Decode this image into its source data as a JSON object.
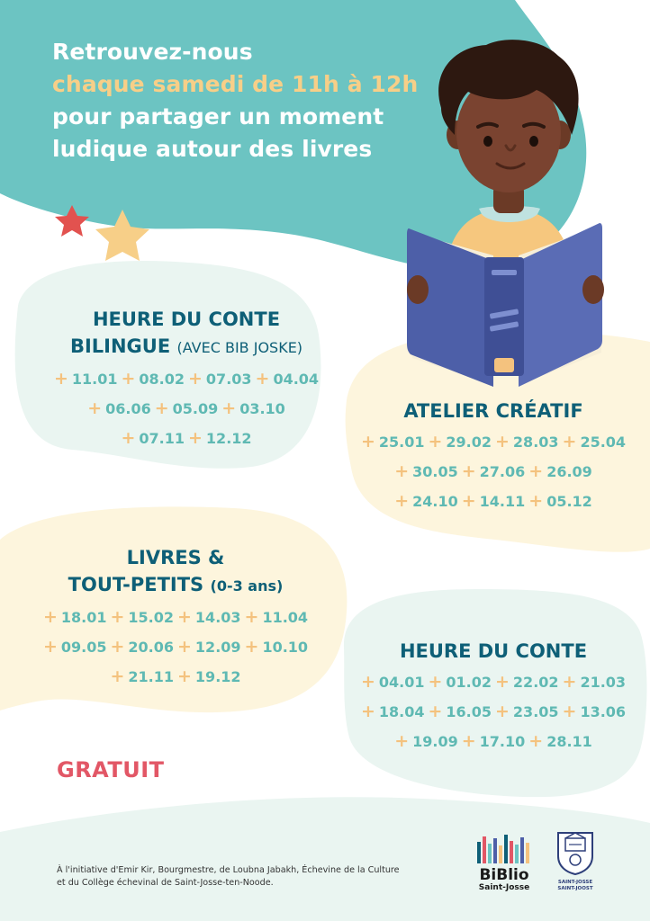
{
  "headline": {
    "line1": "Retrouvez-nous",
    "line2_highlight": "chaque samedi de 11h à 12h",
    "line3": "pour partager un moment",
    "line4": "ludique autour des livres"
  },
  "sections": {
    "conte_bilingue": {
      "title_line1": "HEURE DU CONTE",
      "title_line2": "BILINGUE",
      "title_note": "(AVEC BIB JOSKE)",
      "rows": [
        [
          "11.01",
          "08.02",
          "07.03",
          "04.04"
        ],
        [
          "06.06",
          "05.09",
          "03.10"
        ],
        [
          "07.11",
          "12.12"
        ]
      ]
    },
    "atelier": {
      "title": "ATELIER CRÉATIF",
      "rows": [
        [
          "25.01",
          "29.02",
          "28.03",
          "25.04"
        ],
        [
          "30.05",
          "27.06",
          "26.09"
        ],
        [
          "24.10",
          "14.11",
          "05.12"
        ]
      ]
    },
    "tout_petits": {
      "title_line1": "LIVRES &",
      "title_line2": "TOUT-PETITS",
      "title_note": "(0-3 ans)",
      "rows": [
        [
          "18.01",
          "15.02",
          "14.03",
          "11.04"
        ],
        [
          "09.05",
          "20.06",
          "12.09",
          "10.10"
        ],
        [
          "21.11",
          "19.12"
        ]
      ]
    },
    "conte": {
      "title": "HEURE DU CONTE",
      "rows": [
        [
          "04.01",
          "01.02",
          "22.02",
          "21.03"
        ],
        [
          "18.04",
          "16.05",
          "23.05",
          "13.06"
        ],
        [
          "19.09",
          "17.10",
          "28.11"
        ]
      ]
    }
  },
  "gratuit": "GRATUIT",
  "footer": {
    "line1": "À l'initiative d'Emir Kir, Bourgmestre, de Loubna Jabakh, Échevine de la Culture",
    "line2": "et du Collège échevinal de Saint-Josse-ten-Noode."
  },
  "logos": {
    "biblio_line1": "BiBlio",
    "biblio_line2": "Saint-Josse",
    "commune_line1": "SAINT-JOSSE",
    "commune_line2": "SAINT-JOOST"
  },
  "colors": {
    "teal": "#6cc4c2",
    "mint_blob": "#eaf5f1",
    "cream_blob": "#fdf5dd",
    "title": "#0e5f77",
    "date_text": "#5fb9b3",
    "plus": "#f4c27e",
    "highlight": "#f7cf88",
    "gratuit": "#e25766",
    "book": "#4d5fa8"
  },
  "icons": {
    "illustration": "boy-reading-book-illustration",
    "stars": "star-icon",
    "biblio_logo": "biblio-logo-icon",
    "commune_logo": "coat-of-arms-icon"
  }
}
